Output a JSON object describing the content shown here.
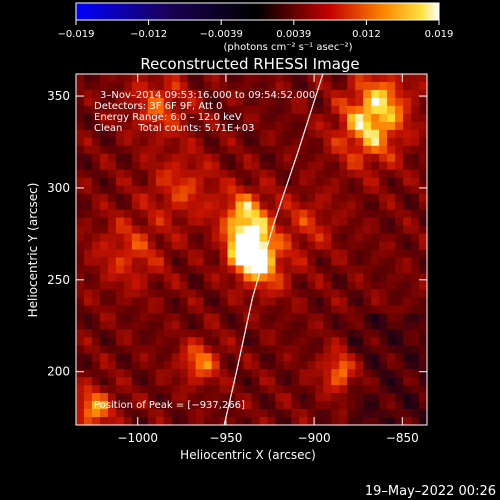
{
  "chart_data": {
    "type": "heatmap",
    "colorbar": {
      "ticks": [
        "−0.019",
        "−0.012",
        "−0.0039",
        "0.0039",
        "0.012",
        "0.019"
      ],
      "units": "(photons cm⁻² s⁻¹ asec⁻²)",
      "range": [
        -0.019,
        0.019
      ]
    },
    "title": "Reconstructed RHESSI Image",
    "annotations": {
      "line1": "3–Nov–2014 09:53:16.000 to 09:54:52.000",
      "line2": "Detectors: 3F 6F 9F, Att 0",
      "line3": "Energy Range: 6.0 – 12.0 keV",
      "line4": "Clean     Total counts: 5.71E+03",
      "peak": "Position of Peak = [−937,266]"
    },
    "peak": [
      -937,
      266
    ],
    "xlabel": "Heliocentric X (arcsec)",
    "ylabel": "Heliocentric Y (arcsec)",
    "xlim": [
      -1035,
      -836
    ],
    "ylim": [
      171,
      362
    ],
    "xticks": [
      {
        "v": -1000,
        "label": "−1000"
      },
      {
        "v": -950,
        "label": "−950"
      },
      {
        "v": -900,
        "label": "−900"
      },
      {
        "v": -850,
        "label": "−850"
      }
    ],
    "yticks": [
      {
        "v": 200,
        "label": "200"
      },
      {
        "v": 250,
        "label": "250"
      },
      {
        "v": 300,
        "label": "300"
      },
      {
        "v": 350,
        "label": "350"
      }
    ],
    "sources": [
      {
        "x": -937,
        "y": 266,
        "intensity": 1.0,
        "size": 8
      },
      {
        "x": -939,
        "y": 285,
        "intensity": 0.55,
        "size": 10
      },
      {
        "x": -928,
        "y": 255,
        "intensity": 0.4,
        "size": 10
      },
      {
        "x": -870,
        "y": 330,
        "intensity": 0.45,
        "size": 14
      },
      {
        "x": -862,
        "y": 348,
        "intensity": 0.4,
        "size": 12
      },
      {
        "x": -988,
        "y": 345,
        "intensity": 0.35,
        "size": 12
      },
      {
        "x": -965,
        "y": 205,
        "intensity": 0.45,
        "size": 8
      },
      {
        "x": -885,
        "y": 200,
        "intensity": 0.45,
        "size": 8
      },
      {
        "x": -1025,
        "y": 180,
        "intensity": 0.5,
        "size": 8
      },
      {
        "x": -975,
        "y": 300,
        "intensity": 0.3,
        "size": 14
      },
      {
        "x": -1005,
        "y": 265,
        "intensity": 0.3,
        "size": 14
      },
      {
        "x": -905,
        "y": 280,
        "intensity": 0.25,
        "size": 12
      }
    ],
    "limb": [
      [
        -951,
        171
      ],
      [
        -944,
        200
      ],
      [
        -935,
        240
      ],
      [
        -923,
        280
      ],
      [
        -909,
        320
      ],
      [
        -895,
        362
      ]
    ]
  },
  "footer": {
    "date": "19–May–2022 00:26"
  }
}
